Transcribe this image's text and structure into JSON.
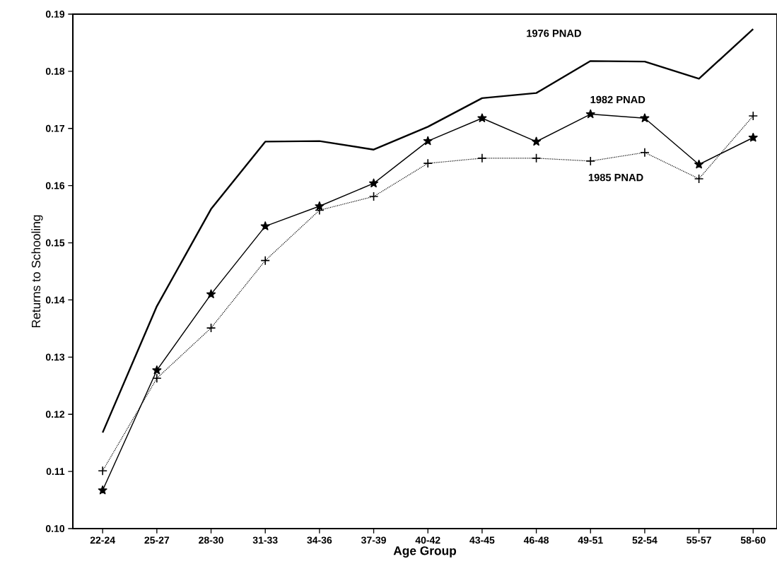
{
  "chart_data": {
    "type": "line",
    "xlabel": "Age Group",
    "ylabel": "Returns to Schooling",
    "categories": [
      "22-24",
      "25-27",
      "28-30",
      "31-33",
      "34-36",
      "37-39",
      "40-42",
      "43-45",
      "46-48",
      "49-51",
      "52-54",
      "55-57",
      "58-60"
    ],
    "series": [
      {
        "name": "1976 PNAD",
        "color": "#000000",
        "marker": "none",
        "line_style": "solid",
        "values": [
          0.1168,
          0.1389,
          0.1559,
          0.1677,
          0.1678,
          0.1663,
          0.1703,
          0.1753,
          0.1762,
          0.1818,
          0.1817,
          0.1787,
          0.1874
        ]
      },
      {
        "name": "1982 PNAD",
        "color": "#000000",
        "marker": "star",
        "line_style": "solid",
        "values": [
          0.1067,
          0.1277,
          0.141,
          0.1529,
          0.1564,
          0.1604,
          0.1678,
          0.1718,
          0.1677,
          0.1725,
          0.1718,
          0.1637,
          0.1684
        ]
      },
      {
        "name": "1985 PNAD",
        "color": "#000000",
        "marker": "cross",
        "line_style": "dotted",
        "values": [
          0.1101,
          0.1263,
          0.1351,
          0.1469,
          0.1557,
          0.1581,
          0.1639,
          0.1648,
          0.1648,
          0.1643,
          0.1658,
          0.1612,
          0.1722
        ]
      }
    ],
    "ylim": [
      0.1,
      0.19
    ],
    "yticks": [
      {
        "value": 0.1,
        "label": "0.10"
      },
      0.11,
      0.12,
      0.13,
      0.14,
      0.15,
      0.16,
      0.17,
      0.18,
      0.19
    ],
    "grid": false,
    "legend": false
  }
}
